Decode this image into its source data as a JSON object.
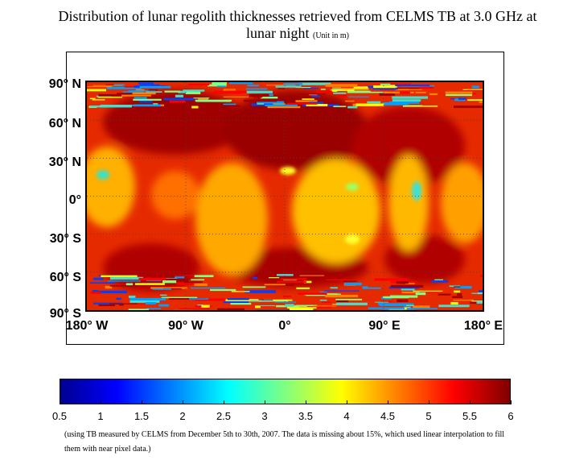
{
  "title": {
    "main": "Distribution of lunar regolith thicknesses retrieved from CELMS TB at 3.0 GHz at lunar night",
    "unit": "(Unit in m)"
  },
  "map": {
    "lat_labels": [
      "90° N",
      "60° N",
      "30° N",
      "0°",
      "30° S",
      "60° S",
      "90° S"
    ],
    "lon_labels": [
      "180° W",
      "90° W",
      "0°",
      "90° E",
      "180° E"
    ],
    "lon_range": [
      -180,
      180
    ],
    "lat_range": [
      -90,
      90
    ],
    "grid": true,
    "grid_style": "dotted"
  },
  "colorbar": {
    "min": 0.5,
    "max": 6,
    "ticks": [
      "0.5",
      "1",
      "1.5",
      "2",
      "2.5",
      "3",
      "3.5",
      "4",
      "4.5",
      "5",
      "5.5",
      "6"
    ],
    "colormap": "jet",
    "colors": [
      "#00008f",
      "#0000ff",
      "#0080ff",
      "#00ffff",
      "#80ff80",
      "#ffff00",
      "#ff8000",
      "#ff0000",
      "#800000"
    ]
  },
  "note": "(using TB measured by CELMS from December 5th to 30th, 2007. The data is missing about 15%, which used linear interpolation to fill them with near pixel data.)"
}
